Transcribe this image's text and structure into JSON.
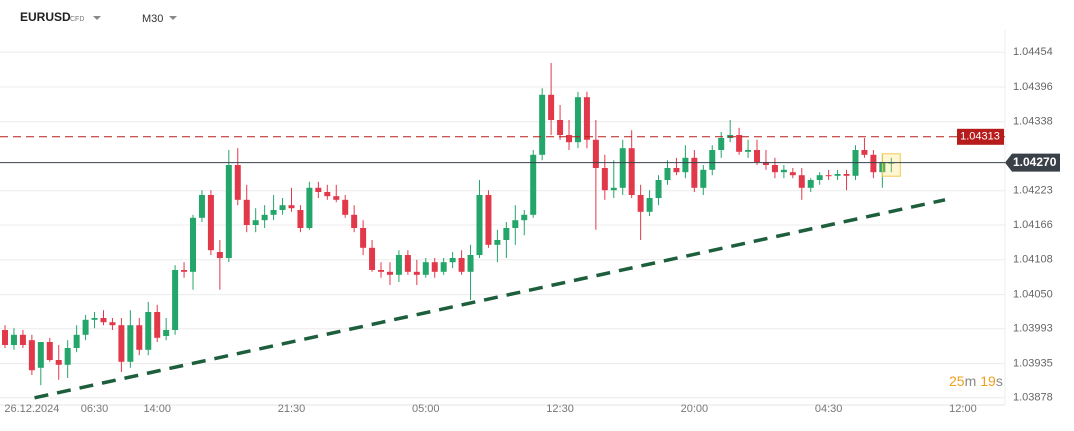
{
  "header": {
    "symbol": "EURUSD",
    "badge": "CFD",
    "interval": "M30"
  },
  "chart_data": {
    "type": "candlestick",
    "open": [
      1.03991,
      1.03966,
      1.03983,
      1.03974,
      1.03928,
      1.03971,
      1.03941,
      1.03933,
      1.03961,
      1.03983,
      1.04008,
      1.04011,
      1.04004,
      1.03999,
      1.03938,
      1.03999,
      1.03958,
      1.04021,
      1.03981,
      1.03991,
      1.04091,
      1.04088,
      1.04178,
      1.04216,
      1.04121,
      1.04111,
      1.04266,
      1.04208,
      1.04166,
      1.04174,
      1.04183,
      1.04191,
      1.04199,
      1.04191,
      1.04161,
      1.04228,
      1.04221,
      1.04214,
      1.04208,
      1.04183,
      1.04161,
      1.04128,
      1.04091,
      1.04088,
      1.04083,
      1.04116,
      1.04088,
      1.04083,
      1.04104,
      1.04088,
      1.04104,
      1.04111,
      1.04088,
      1.04116,
      1.04216,
      1.04133,
      1.04141,
      1.04161,
      1.04174,
      1.04183,
      1.04283,
      1.04383,
      1.04341,
      1.04316,
      1.04304,
      1.04379,
      1.04308,
      1.04261,
      1.04224,
      1.04228,
      1.04294,
      1.04216,
      1.04188,
      1.04211,
      1.04241,
      1.04261,
      1.04254,
      1.04278,
      1.04228,
      1.04258,
      1.04291,
      1.04311,
      1.04316,
      1.04288,
      1.04291,
      1.04271,
      1.04266,
      1.04254,
      1.04254,
      1.04249,
      1.04228,
      1.04241,
      1.04249,
      1.04248,
      1.04251,
      1.04248,
      1.04291,
      1.04283,
      1.04254,
      1.04269
    ],
    "high": [
      1.03999,
      1.03994,
      1.03991,
      1.03983,
      1.03966,
      1.03978,
      1.03966,
      1.03974,
      1.03999,
      1.04016,
      1.04021,
      1.04024,
      1.04011,
      1.04011,
      1.04024,
      1.04011,
      1.04038,
      1.04033,
      1.04011,
      1.04099,
      1.04104,
      1.04183,
      1.04224,
      1.04224,
      1.04141,
      1.04291,
      1.04294,
      1.04233,
      1.04194,
      1.04199,
      1.04216,
      1.04211,
      1.04228,
      1.04199,
      1.04238,
      1.04238,
      1.04233,
      1.04233,
      1.04216,
      1.04199,
      1.04174,
      1.04141,
      1.04104,
      1.04104,
      1.04124,
      1.04124,
      1.04108,
      1.04111,
      1.04111,
      1.04111,
      1.04121,
      1.04124,
      1.04133,
      1.04241,
      1.04224,
      1.04158,
      1.04171,
      1.04199,
      1.04191,
      1.04291,
      1.04394,
      1.04436,
      1.04366,
      1.04341,
      1.04388,
      1.04388,
      1.04341,
      1.04283,
      1.04274,
      1.04308,
      1.04324,
      1.04233,
      1.04224,
      1.04249,
      1.04274,
      1.04278,
      1.04299,
      1.04291,
      1.04266,
      1.04299,
      1.04321,
      1.04341,
      1.04328,
      1.04308,
      1.04308,
      1.04291,
      1.04278,
      1.04266,
      1.04261,
      1.04261,
      1.04244,
      1.04254,
      1.04258,
      1.04258,
      1.04258,
      1.04299,
      1.04311,
      1.04291,
      1.04283,
      1.04278
    ],
    "low": [
      1.03961,
      1.03958,
      1.03961,
      1.03916,
      1.03899,
      1.03938,
      1.03908,
      1.03911,
      1.03954,
      1.03974,
      1.03994,
      1.03999,
      1.03991,
      1.03921,
      1.03928,
      1.03949,
      1.03949,
      1.03971,
      1.03974,
      1.03983,
      1.04078,
      1.04058,
      1.04171,
      1.04116,
      1.04058,
      1.04104,
      1.04199,
      1.04154,
      1.04154,
      1.04161,
      1.04174,
      1.04183,
      1.04188,
      1.04154,
      1.04158,
      1.04211,
      1.04208,
      1.04204,
      1.04178,
      1.04154,
      1.04116,
      1.04088,
      1.04078,
      1.04066,
      1.04071,
      1.04083,
      1.04066,
      1.04078,
      1.04078,
      1.04083,
      1.04094,
      1.04083,
      1.04041,
      1.04111,
      1.04128,
      1.04104,
      1.04111,
      1.04133,
      1.04149,
      1.04178,
      1.04274,
      1.04316,
      1.04308,
      1.04291,
      1.04294,
      1.04294,
      1.04158,
      1.04208,
      1.04211,
      1.04216,
      1.04211,
      1.04141,
      1.04181,
      1.04199,
      1.04233,
      1.04249,
      1.04244,
      1.04221,
      1.04216,
      1.04249,
      1.04278,
      1.04304,
      1.04283,
      1.04278,
      1.04266,
      1.04258,
      1.04244,
      1.04244,
      1.04244,
      1.04208,
      1.04221,
      1.04233,
      1.04241,
      1.04241,
      1.04224,
      1.04241,
      1.04278,
      1.04244,
      1.04228,
      1.04254
    ],
    "close": [
      1.03966,
      1.03983,
      1.03966,
      1.03924,
      1.03971,
      1.03941,
      1.03933,
      1.03961,
      1.03983,
      1.04008,
      1.04011,
      1.04004,
      1.03999,
      1.03938,
      1.03999,
      1.03958,
      1.04021,
      1.03978,
      1.03991,
      1.04091,
      1.04088,
      1.04178,
      1.04216,
      1.04124,
      1.04111,
      1.04266,
      1.04208,
      1.04166,
      1.04174,
      1.04183,
      1.04191,
      1.04199,
      1.04194,
      1.04161,
      1.04228,
      1.04221,
      1.04214,
      1.04208,
      1.04183,
      1.04161,
      1.04128,
      1.04091,
      1.04088,
      1.04083,
      1.04116,
      1.04088,
      1.04083,
      1.04104,
      1.04088,
      1.04104,
      1.04111,
      1.04088,
      1.04116,
      1.04216,
      1.04133,
      1.04141,
      1.04161,
      1.04174,
      1.04183,
      1.04283,
      1.04383,
      1.04341,
      1.04316,
      1.04304,
      1.04379,
      1.04308,
      1.04261,
      1.04224,
      1.04228,
      1.04294,
      1.04216,
      1.04188,
      1.04211,
      1.04241,
      1.04261,
      1.04254,
      1.04278,
      1.04228,
      1.04258,
      1.04291,
      1.04311,
      1.04316,
      1.04288,
      1.04291,
      1.04271,
      1.04266,
      1.04254,
      1.04258,
      1.04249,
      1.04228,
      1.04241,
      1.04249,
      1.04248,
      1.04251,
      1.04248,
      1.04291,
      1.04283,
      1.04254,
      1.04271,
      1.0427
    ],
    "up_color": "#24a56a",
    "down_color": "#e2394a",
    "xlim": [
      -0.56,
      111.7
    ],
    "xticks": [
      {
        "value": 3,
        "label": "26.12.2024"
      },
      {
        "value": 10,
        "label": "06:30"
      },
      {
        "value": 17,
        "label": "14:00"
      },
      {
        "value": 32,
        "label": "21:30"
      },
      {
        "value": 47,
        "label": "05:00"
      },
      {
        "value": 62,
        "label": "12:30"
      },
      {
        "value": 77,
        "label": "20:00"
      },
      {
        "value": 92,
        "label": "04:30"
      },
      {
        "value": 107,
        "label": "12:00"
      }
    ],
    "ylim": [
      1.03866,
      1.04491
    ],
    "yticks": [
      1.04454,
      1.04396,
      1.04338,
      1.04223,
      1.04166,
      1.04108,
      {
        "value": 1.0405,
        "label": "1.04050"
      },
      1.03993,
      1.03935,
      1.03878
    ],
    "grid": true,
    "levels": [
      {
        "value": 1.04313,
        "label": "1.04313",
        "color": "#b71c1c",
        "style": "dashed"
      },
      {
        "value": 1.0427,
        "label": "1.04270",
        "color": "#3a4048",
        "style": "solid"
      }
    ],
    "trendline": {
      "x": [
        3.3,
        105
      ],
      "values": [
        1.03878,
        1.04208
      ],
      "color": "#1d5f3c"
    },
    "countdown": {
      "minutes": "25",
      "minutes_unit": "m",
      "seconds": "19",
      "seconds_unit": "s"
    }
  }
}
